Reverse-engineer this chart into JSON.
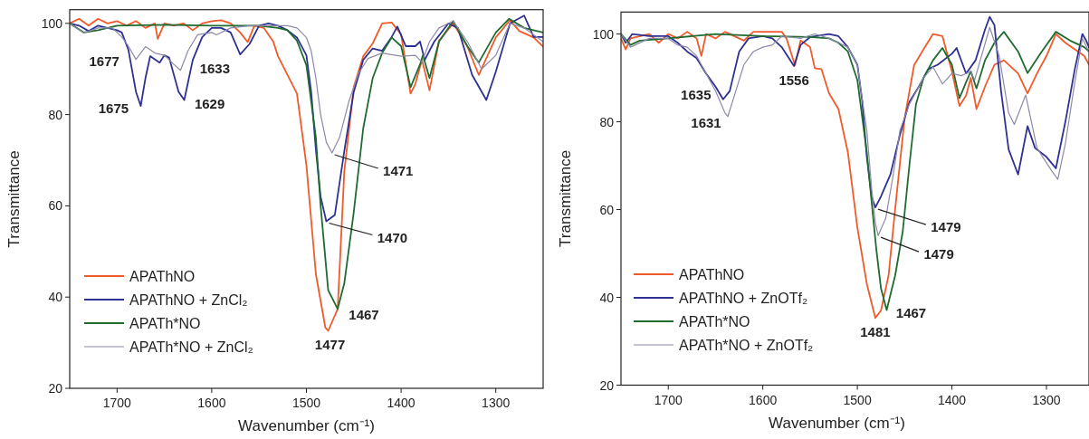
{
  "chart_data": [
    {
      "type": "line",
      "xlabel": "Wavenumber (cm⁻¹)",
      "ylabel": "Transmittance",
      "xlim": [
        1750,
        1250
      ],
      "ylim": [
        20,
        103
      ],
      "xticks": [
        1700,
        1600,
        1500,
        1400,
        1300
      ],
      "yticks": [
        20,
        40,
        60,
        80,
        100
      ],
      "legend": "bottom left",
      "grid": false,
      "marker": "none",
      "line_style": "solid",
      "series": [
        {
          "name": "APAThNO",
          "color": "#f15a29",
          "x": [
            1750,
            1740,
            1730,
            1720,
            1710,
            1700,
            1690,
            1680,
            1670,
            1660,
            1657,
            1650,
            1640,
            1630,
            1620,
            1610,
            1600,
            1590,
            1580,
            1570,
            1562,
            1555,
            1545,
            1535,
            1530,
            1510,
            1500,
            1490,
            1480,
            1477,
            1467,
            1460,
            1450,
            1440,
            1430,
            1420,
            1410,
            1400,
            1390,
            1385,
            1378,
            1370,
            1360,
            1345,
            1330,
            1318,
            1300,
            1285,
            1275,
            1260,
            1250
          ],
          "values": [
            100,
            101,
            99.5,
            101,
            100,
            100.5,
            99.5,
            100.5,
            99,
            100,
            96.6,
            100,
            99.5,
            100,
            98.5,
            100,
            100.5,
            100.7,
            100,
            98,
            95.9,
            99.5,
            99,
            96,
            92.8,
            84.6,
            68.9,
            45,
            33.3,
            32.6,
            37.4,
            67.5,
            86,
            92.8,
            95.6,
            100,
            100.2,
            97.6,
            84.6,
            86.7,
            92,
            85.3,
            96.2,
            100,
            94.9,
            88.7,
            96.9,
            100.7,
            98.3,
            96.9,
            94.9
          ]
        },
        {
          "name": "APAThNO + ZnCl₂",
          "color": "#2e3192",
          "x": [
            1750,
            1740,
            1730,
            1720,
            1710,
            1700,
            1695,
            1688,
            1680,
            1675,
            1670,
            1665,
            1655,
            1650,
            1645,
            1635,
            1629,
            1620,
            1610,
            1600,
            1590,
            1580,
            1570,
            1560,
            1550,
            1540,
            1530,
            1520,
            1510,
            1500,
            1495,
            1490,
            1485,
            1479,
            1470,
            1460,
            1450,
            1440,
            1430,
            1420,
            1410,
            1404,
            1395,
            1385,
            1380,
            1375,
            1365,
            1350,
            1340,
            1325,
            1310,
            1300,
            1285,
            1270,
            1260,
            1250
          ],
          "values": [
            100,
            99.5,
            98.3,
            99.5,
            99,
            98.5,
            98,
            94.2,
            85,
            81.9,
            88,
            92.8,
            91.4,
            93,
            92.5,
            85,
            83.2,
            92,
            97,
            99,
            99,
            98,
            93.2,
            95.5,
            99.5,
            100,
            99.5,
            98.5,
            96.9,
            93,
            85,
            72.3,
            62,
            56.6,
            58,
            72,
            85,
            92,
            94.5,
            94,
            97,
            99.3,
            95,
            95,
            96,
            92,
            96,
            100,
            99,
            88.7,
            83.2,
            89.4,
            100,
            101.7,
            97,
            97
          ]
        },
        {
          "name": "APATh*NO",
          "color": "#1f6b30",
          "x": [
            1750,
            1735,
            1720,
            1700,
            1650,
            1600,
            1550,
            1530,
            1520,
            1510,
            1500,
            1490,
            1485,
            1477,
            1467,
            1460,
            1450,
            1440,
            1430,
            1420,
            1410,
            1400,
            1390,
            1380,
            1377,
            1370,
            1360,
            1345,
            1330,
            1318,
            1300,
            1286,
            1270,
            1250
          ],
          "values": [
            100,
            98,
            98.5,
            99.5,
            99.7,
            99.5,
            99.5,
            99,
            98.5,
            96.2,
            90.8,
            75,
            60,
            41.5,
            37.4,
            43,
            58.6,
            77,
            88,
            93.5,
            96.9,
            95,
            86,
            91,
            93,
            88,
            96,
            100.5,
            95,
            91.4,
            98,
            101,
            99,
            98
          ]
        },
        {
          "name": "APATh*NO + ZnCl₂",
          "color": "#8c8aa8",
          "x": [
            1750,
            1735,
            1720,
            1705,
            1695,
            1688,
            1680,
            1670,
            1660,
            1650,
            1640,
            1633,
            1625,
            1615,
            1600,
            1595,
            1580,
            1560,
            1540,
            1520,
            1510,
            1500,
            1495,
            1490,
            1485,
            1479,
            1473,
            1465,
            1455,
            1445,
            1435,
            1420,
            1400,
            1385,
            1378,
            1370,
            1360,
            1345,
            1330,
            1315,
            1300,
            1285,
            1270,
            1250
          ],
          "values": [
            100,
            97.9,
            99,
            99,
            97,
            95,
            92.1,
            94.9,
            93.5,
            93,
            91,
            89.7,
            94,
            97.5,
            98,
            97.5,
            99,
            99.5,
            99.5,
            99.5,
            99,
            96.9,
            94,
            88,
            80,
            74,
            71.6,
            75,
            83,
            89,
            92.3,
            93.5,
            92.8,
            93,
            91.5,
            96,
            99,
            100.5,
            96,
            90,
            93,
            100,
            99,
            96
          ]
        }
      ],
      "annotations": [
        {
          "text": "1677",
          "x": 1680,
          "y": 92.1
        },
        {
          "text": "1633",
          "x": 1633,
          "y": 89.7
        },
        {
          "text": "1675",
          "x": 1675,
          "y": 81.9
        },
        {
          "text": "1629",
          "x": 1629,
          "y": 83.2
        },
        {
          "text": "1471",
          "x": 1473,
          "y": 71.6
        },
        {
          "text": "1470",
          "x": 1479,
          "y": 56.6
        },
        {
          "text": "1467",
          "x": 1467,
          "y": 37.4
        },
        {
          "text": "1477",
          "x": 1477,
          "y": 32.6
        }
      ]
    },
    {
      "type": "line",
      "xlabel": "Wavenumber (cm⁻¹)",
      "ylabel": "Transmittance",
      "xlim": [
        1750,
        1255
      ],
      "ylim": [
        20,
        105
      ],
      "xticks": [
        1700,
        1600,
        1500,
        1400,
        1300
      ],
      "yticks": [
        20,
        40,
        60,
        80,
        100
      ],
      "legend": "bottom left",
      "grid": false,
      "marker": "none",
      "line_style": "solid",
      "series": [
        {
          "name": "APAThNO",
          "color": "#f15a29",
          "x": [
            1750,
            1745,
            1740,
            1720,
            1710,
            1700,
            1690,
            1680,
            1670,
            1665,
            1660,
            1650,
            1640,
            1620,
            1610,
            1580,
            1575,
            1566,
            1560,
            1550,
            1545,
            1538,
            1530,
            1520,
            1510,
            1500,
            1490,
            1481,
            1475,
            1467,
            1460,
            1450,
            1440,
            1430,
            1420,
            1410,
            1400,
            1392,
            1385,
            1380,
            1374,
            1365,
            1355,
            1345,
            1330,
            1320,
            1310,
            1300,
            1290,
            1280,
            1270,
            1260,
            1255
          ],
          "values": [
            99,
            96.5,
            99,
            100,
            98,
            100,
            99,
            100.5,
            99,
            95,
            100,
            99,
            100.5,
            98.5,
            100.5,
            100.5,
            99,
            92.9,
            98.5,
            97,
            92.2,
            92,
            86.5,
            82.9,
            73,
            55.9,
            43.1,
            35.3,
            37,
            45,
            60.2,
            80.8,
            92.9,
            96.5,
            100,
            99.5,
            91.5,
            83.6,
            86,
            90,
            82.9,
            88,
            93,
            94,
            91,
            86.5,
            91,
            95,
            100,
            98,
            96.5,
            95,
            93
          ]
        },
        {
          "name": "APAThNO + ZnOTf₂",
          "color": "#2e3192",
          "x": [
            1750,
            1745,
            1738,
            1720,
            1700,
            1690,
            1680,
            1670,
            1660,
            1650,
            1642,
            1635,
            1625,
            1615,
            1600,
            1590,
            1580,
            1567,
            1560,
            1550,
            1530,
            1520,
            1510,
            1500,
            1495,
            1490,
            1485,
            1481,
            1475,
            1465,
            1455,
            1445,
            1435,
            1425,
            1415,
            1400,
            1395,
            1385,
            1375,
            1365,
            1360,
            1355,
            1348,
            1340,
            1330,
            1320,
            1312,
            1300,
            1290,
            1280,
            1270,
            1262,
            1258,
            1255
          ],
          "values": [
            100,
            98,
            100,
            99.5,
            99.5,
            98,
            96,
            94.5,
            91,
            88,
            85.1,
            87,
            96,
            99,
            99.5,
            99,
            97,
            92.7,
            97.5,
            99.3,
            100,
            99.5,
            97,
            93,
            85,
            72,
            63,
            60.5,
            63,
            68,
            77,
            84.5,
            88,
            92,
            93,
            95.5,
            96.8,
            91,
            94,
            101,
            103.9,
            102,
            87,
            73.7,
            68,
            79,
            74,
            72,
            69.4,
            80,
            92,
            100,
            98.5,
            97
          ]
        },
        {
          "name": "APATh*NO",
          "color": "#1f6b30",
          "x": [
            1750,
            1740,
            1730,
            1700,
            1650,
            1600,
            1550,
            1530,
            1520,
            1510,
            1500,
            1490,
            1485,
            1480,
            1475,
            1469,
            1460,
            1452,
            1445,
            1438,
            1430,
            1420,
            1410,
            1400,
            1392,
            1385,
            1380,
            1374,
            1365,
            1355,
            1345,
            1330,
            1320,
            1305,
            1290,
            1275,
            1260,
            1255
          ],
          "values": [
            100,
            97.5,
            98.5,
            99,
            100,
            99.5,
            99.3,
            99,
            98,
            96,
            89.5,
            73,
            62,
            51,
            42,
            37.1,
            45,
            55,
            70,
            84,
            90,
            94,
            96.8,
            93,
            85.4,
            89,
            91.5,
            87.6,
            94,
            98,
            100.5,
            96,
            91.1,
            96,
            100.5,
            98.5,
            97,
            96
          ]
        },
        {
          "name": "APATh*NO + ZnOTf₂",
          "color": "#8c8aa8",
          "x": [
            1750,
            1740,
            1720,
            1700,
            1690,
            1680,
            1670,
            1660,
            1650,
            1640,
            1637,
            1630,
            1620,
            1610,
            1600,
            1590,
            1580,
            1560,
            1545,
            1530,
            1520,
            1510,
            1500,
            1490,
            1485,
            1481,
            1478,
            1470,
            1462,
            1455,
            1445,
            1430,
            1420,
            1410,
            1400,
            1390,
            1380,
            1376,
            1370,
            1360,
            1350,
            1340,
            1334,
            1322,
            1310,
            1295,
            1288,
            1280,
            1270,
            1262,
            1255
          ],
          "values": [
            100,
            97,
            99,
            99,
            97.5,
            97,
            95,
            91,
            87,
            82,
            81.2,
            86,
            93,
            96,
            97,
            97.5,
            99.5,
            99,
            100,
            99,
            98,
            97,
            93,
            78,
            65,
            57,
            54.1,
            58,
            68,
            78,
            84,
            90,
            92.5,
            88.6,
            91,
            90.5,
            91.5,
            89.5,
            94,
            101.5,
            95,
            82,
            79.4,
            86.1,
            74,
            69,
            66.9,
            75,
            89,
            99,
            96
          ]
        }
      ],
      "annotations": [
        {
          "text": "1635",
          "x": 1642,
          "y": 85.1
        },
        {
          "text": "1631",
          "x": 1637,
          "y": 81.2
        },
        {
          "text": "1556",
          "x": 1567,
          "y": 92.7
        },
        {
          "text": "1479",
          "x": 1481,
          "y": 60.5
        },
        {
          "text": "1479",
          "x": 1478,
          "y": 54.1
        },
        {
          "text": "1467",
          "x": 1469,
          "y": 37.1
        },
        {
          "text": "1481",
          "x": 1481,
          "y": 35.3
        }
      ]
    }
  ]
}
